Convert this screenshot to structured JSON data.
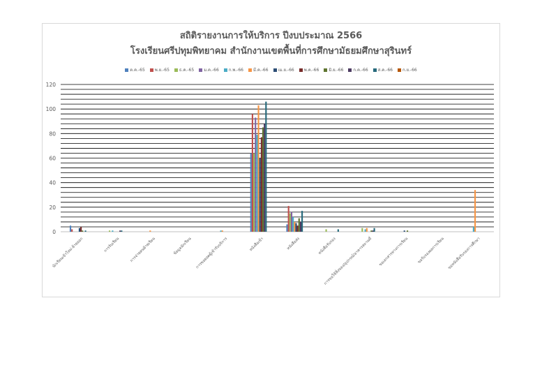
{
  "chart_data": {
    "type": "bar",
    "title_line1": "สถิติรายงานการให้บริการ ปีงบประมาณ 2566",
    "title_line2": "โรงเรียนศรีปทุมพิทยาคม สำนักงานเขตพื้นที่การศึกษามัธยมศึกษาสุรินทร์",
    "ylim": [
      0,
      120
    ],
    "yticks": [
      0,
      20,
      40,
      60,
      80,
      100,
      120
    ],
    "grid": true,
    "legend_position": "top",
    "categories": [
      "นักเรียนเข้าใหม่-ย้ายออก",
      "การรับเรียน",
      "การจ่ายคนย้ายเรียน",
      "ข้อมูลนักเรียน",
      "การขอยอดผู้เข้ารับบริการ",
      "หนังสือเข้า",
      "หนังสือส่ง",
      "หนังสือรับรอง",
      "การขอใช้สิ่งของ/อุปกรณ์/อาคารสถานที่",
      "ขอเอกสารทางการเรียน",
      "ขอรับรองผลการเรียน",
      "ขอหนังสือรับรองการศึกษา"
    ],
    "series": [
      {
        "name": "ต.ค.-65",
        "color": "#4f81bd",
        "values": [
          5,
          0,
          0,
          0,
          0,
          64,
          6,
          0,
          0,
          0,
          0,
          0
        ]
      },
      {
        "name": "พ.ย.-65",
        "color": "#c0504d",
        "values": [
          2,
          0,
          0,
          0,
          0,
          96,
          21,
          0,
          0,
          0,
          0,
          0
        ]
      },
      {
        "name": "ธ.ค.-65",
        "color": "#9bbb59",
        "values": [
          0,
          1,
          0,
          0,
          0,
          64,
          15,
          2,
          3,
          0,
          0,
          0
        ]
      },
      {
        "name": "ม.ค.-66",
        "color": "#8064a2",
        "values": [
          0,
          0,
          0,
          0,
          0,
          93,
          16,
          0,
          0,
          0,
          0,
          0
        ]
      },
      {
        "name": "ก.พ.-66",
        "color": "#4bacc6",
        "values": [
          0,
          1,
          0,
          0,
          1,
          79,
          12,
          0,
          2,
          0,
          0,
          4
        ]
      },
      {
        "name": "มี.ค.-66",
        "color": "#f79646",
        "values": [
          0,
          0,
          1,
          0,
          1,
          103,
          8,
          0,
          3,
          0,
          0,
          34
        ]
      },
      {
        "name": "เม.ย.-66",
        "color": "#2c4d75",
        "values": [
          3,
          0,
          0,
          0,
          0,
          60,
          7,
          0,
          0,
          1,
          0,
          0
        ]
      },
      {
        "name": "พ.ค.-66",
        "color": "#772c2a",
        "values": [
          4,
          0,
          0,
          0,
          0,
          77,
          5,
          0,
          0,
          0,
          0,
          0
        ]
      },
      {
        "name": "มิ.ย.-66",
        "color": "#5f7530",
        "values": [
          1,
          0,
          0,
          0,
          0,
          85,
          11,
          0,
          1,
          1,
          0,
          0
        ]
      },
      {
        "name": "ก.ค.-66",
        "color": "#4d3b62",
        "values": [
          0,
          1,
          0,
          0,
          0,
          88,
          8,
          0,
          1,
          0,
          0,
          0
        ]
      },
      {
        "name": "ส.ค.-66",
        "color": "#276a7c",
        "values": [
          1,
          1,
          0,
          0,
          0,
          106,
          17,
          2,
          3,
          0,
          0,
          0
        ]
      },
      {
        "name": "ก.ย.-66",
        "color": "#b65708",
        "values": [
          0,
          0,
          0,
          0,
          0,
          0,
          0,
          0,
          0,
          0,
          0,
          0
        ]
      }
    ]
  }
}
